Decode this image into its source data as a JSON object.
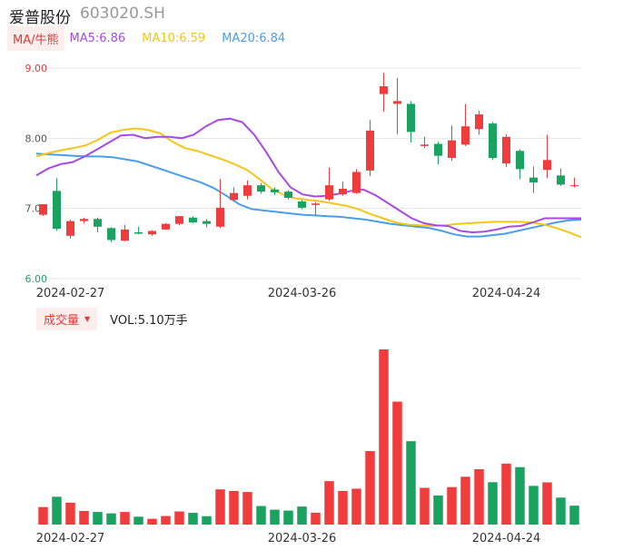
{
  "header": {
    "name": "爱普股份",
    "code": "603020.SH"
  },
  "ma_legend": {
    "button": "MA/牛熊",
    "items": [
      {
        "label": "MA5:6.86",
        "color": "#a64ae8"
      },
      {
        "label": "MA10:6.59",
        "color": "#f5c518"
      },
      {
        "label": "MA20:6.84",
        "color": "#4a9eea"
      }
    ]
  },
  "volume_legend": {
    "button": "成交量",
    "text": "VOL:5.10万手"
  },
  "colors": {
    "up": "#f03c3c",
    "down": "#1aa260",
    "ma5": "#a64ae8",
    "ma10": "#f5c518",
    "ma20": "#4a9eea",
    "grid": "#e6e6e6"
  },
  "chart_data": [
    {
      "type": "candlestick",
      "y_ticks": [
        "9.00",
        "8.00",
        "7.00",
        "6.00"
      ],
      "y_tick_values": [
        9,
        8,
        7,
        6
      ],
      "y_tick_colors": [
        "#e03a3a",
        "#555555",
        "#555555",
        "#1aa260"
      ],
      "ylim": [
        6.0,
        9.0
      ],
      "x_ticks": [
        {
          "label": "2024-02-27",
          "index": 2
        },
        {
          "label": "2024-03-26",
          "index": 19
        },
        {
          "label": "2024-04-24",
          "index": 34
        }
      ],
      "candles": [
        {
          "o": 6.91,
          "c": 7.06,
          "h": 7.06,
          "l": 6.89
        },
        {
          "o": 7.25,
          "c": 6.71,
          "h": 7.43,
          "l": 6.68
        },
        {
          "o": 6.61,
          "c": 6.82,
          "h": 6.84,
          "l": 6.57
        },
        {
          "o": 6.82,
          "c": 6.85,
          "h": 6.87,
          "l": 6.79
        },
        {
          "o": 6.85,
          "c": 6.74,
          "h": 6.87,
          "l": 6.66
        },
        {
          "o": 6.72,
          "c": 6.55,
          "h": 6.73,
          "l": 6.52
        },
        {
          "o": 6.54,
          "c": 6.7,
          "h": 6.77,
          "l": 6.53
        },
        {
          "o": 6.66,
          "c": 6.64,
          "h": 6.74,
          "l": 6.63
        },
        {
          "o": 6.63,
          "c": 6.68,
          "h": 6.69,
          "l": 6.61
        },
        {
          "o": 6.7,
          "c": 6.78,
          "h": 6.79,
          "l": 6.7
        },
        {
          "o": 6.78,
          "c": 6.89,
          "h": 6.89,
          "l": 6.76
        },
        {
          "o": 6.87,
          "c": 6.8,
          "h": 6.89,
          "l": 6.79
        },
        {
          "o": 6.82,
          "c": 6.78,
          "h": 6.85,
          "l": 6.73
        },
        {
          "o": 6.74,
          "c": 7.01,
          "h": 7.42,
          "l": 6.72
        },
        {
          "o": 7.12,
          "c": 7.22,
          "h": 7.3,
          "l": 7.1
        },
        {
          "o": 7.18,
          "c": 7.33,
          "h": 7.4,
          "l": 7.13
        },
        {
          "o": 7.33,
          "c": 7.24,
          "h": 7.36,
          "l": 7.21
        },
        {
          "o": 7.27,
          "c": 7.23,
          "h": 7.3,
          "l": 7.19
        },
        {
          "o": 7.24,
          "c": 7.15,
          "h": 7.26,
          "l": 7.13
        },
        {
          "o": 7.1,
          "c": 7.01,
          "h": 7.12,
          "l": 6.99
        },
        {
          "o": 7.05,
          "c": 7.07,
          "h": 7.09,
          "l": 6.9
        },
        {
          "o": 7.13,
          "c": 7.33,
          "h": 7.58,
          "l": 7.11
        },
        {
          "o": 7.2,
          "c": 7.28,
          "h": 7.38,
          "l": 7.18
        },
        {
          "o": 7.22,
          "c": 7.52,
          "h": 7.56,
          "l": 7.21
        },
        {
          "o": 7.54,
          "c": 8.11,
          "h": 8.26,
          "l": 7.46
        },
        {
          "o": 8.63,
          "c": 8.74,
          "h": 8.93,
          "l": 8.38
        },
        {
          "o": 8.49,
          "c": 8.53,
          "h": 8.86,
          "l": 8.06
        },
        {
          "o": 8.49,
          "c": 8.09,
          "h": 8.53,
          "l": 7.94
        },
        {
          "o": 7.89,
          "c": 7.91,
          "h": 8.02,
          "l": 7.86
        },
        {
          "o": 7.92,
          "c": 7.75,
          "h": 7.95,
          "l": 7.63
        },
        {
          "o": 7.72,
          "c": 7.97,
          "h": 8.18,
          "l": 7.68
        },
        {
          "o": 7.91,
          "c": 8.17,
          "h": 8.49,
          "l": 7.89
        },
        {
          "o": 8.13,
          "c": 8.34,
          "h": 8.39,
          "l": 8.05
        },
        {
          "o": 8.21,
          "c": 7.72,
          "h": 8.23,
          "l": 7.69
        },
        {
          "o": 7.64,
          "c": 8.02,
          "h": 8.06,
          "l": 7.59
        },
        {
          "o": 7.82,
          "c": 7.56,
          "h": 7.84,
          "l": 7.42
        },
        {
          "o": 7.44,
          "c": 7.37,
          "h": 7.6,
          "l": 7.22
        },
        {
          "o": 7.55,
          "c": 7.69,
          "h": 8.05,
          "l": 7.43
        },
        {
          "o": 7.47,
          "c": 7.34,
          "h": 7.57,
          "l": 7.32
        },
        {
          "o": 7.32,
          "c": 7.33,
          "h": 7.44,
          "l": 7.3
        }
      ],
      "ma5": [
        7.47,
        7.57,
        7.63,
        7.66,
        7.74,
        7.84,
        7.94,
        8.04,
        8.05,
        8.0,
        8.02,
        8.02,
        8.0,
        8.05,
        8.17,
        8.26,
        8.28,
        8.23,
        8.05,
        7.8,
        7.52,
        7.3,
        7.2,
        7.17,
        7.18,
        7.21,
        7.25,
        7.27,
        7.19,
        7.08,
        6.97,
        6.86,
        6.79,
        6.76,
        6.75,
        6.68,
        6.66,
        6.67,
        6.7,
        6.74,
        6.75,
        6.8,
        6.86,
        6.86,
        6.86,
        6.86
      ],
      "ma10": [
        7.74,
        7.79,
        7.83,
        7.86,
        7.9,
        7.98,
        8.08,
        8.12,
        8.14,
        8.12,
        8.07,
        7.95,
        7.86,
        7.82,
        7.76,
        7.7,
        7.63,
        7.55,
        7.42,
        7.28,
        7.19,
        7.14,
        7.12,
        7.1,
        7.07,
        7.04,
        6.99,
        6.92,
        6.86,
        6.8,
        6.77,
        6.76,
        6.75,
        6.76,
        6.78,
        6.79,
        6.8,
        6.81,
        6.81,
        6.81,
        6.8,
        6.77,
        6.72,
        6.66,
        6.59
      ],
      "ma20": [
        7.78,
        7.77,
        7.76,
        7.75,
        7.74,
        7.74,
        7.73,
        7.7,
        7.67,
        7.61,
        7.55,
        7.49,
        7.43,
        7.37,
        7.29,
        7.18,
        7.06,
        6.99,
        6.97,
        6.95,
        6.93,
        6.91,
        6.9,
        6.89,
        6.88,
        6.86,
        6.84,
        6.81,
        6.78,
        6.76,
        6.74,
        6.72,
        6.68,
        6.63,
        6.6,
        6.6,
        6.62,
        6.64,
        6.68,
        6.72,
        6.76,
        6.8,
        6.83,
        6.84
      ]
    },
    {
      "type": "bar",
      "title": "成交量",
      "x_ticks": [
        {
          "label": "2024-02-27",
          "index": 2
        },
        {
          "label": "2024-03-26",
          "index": 19
        },
        {
          "label": "2024-04-24",
          "index": 34
        }
      ],
      "values": [
        1.0,
        1.59,
        1.25,
        0.78,
        0.72,
        0.64,
        0.72,
        0.45,
        0.33,
        0.49,
        0.75,
        0.67,
        0.48,
        2.01,
        1.92,
        1.86,
        1.06,
        0.85,
        0.8,
        1.03,
        0.68,
        2.48,
        1.92,
        2.05,
        4.2,
        10.0,
        7.02,
        4.76,
        2.1,
        1.66,
        2.14,
        2.73,
        3.16,
        2.42,
        3.48,
        3.28,
        2.21,
        2.41,
        1.54,
        1.08
      ],
      "up": [
        true,
        false,
        true,
        true,
        false,
        false,
        true,
        false,
        true,
        true,
        true,
        false,
        false,
        true,
        true,
        true,
        false,
        false,
        false,
        false,
        true,
        true,
        true,
        true,
        true,
        true,
        true,
        false,
        true,
        false,
        true,
        true,
        true,
        false,
        true,
        false,
        false,
        true,
        false,
        false
      ]
    }
  ]
}
